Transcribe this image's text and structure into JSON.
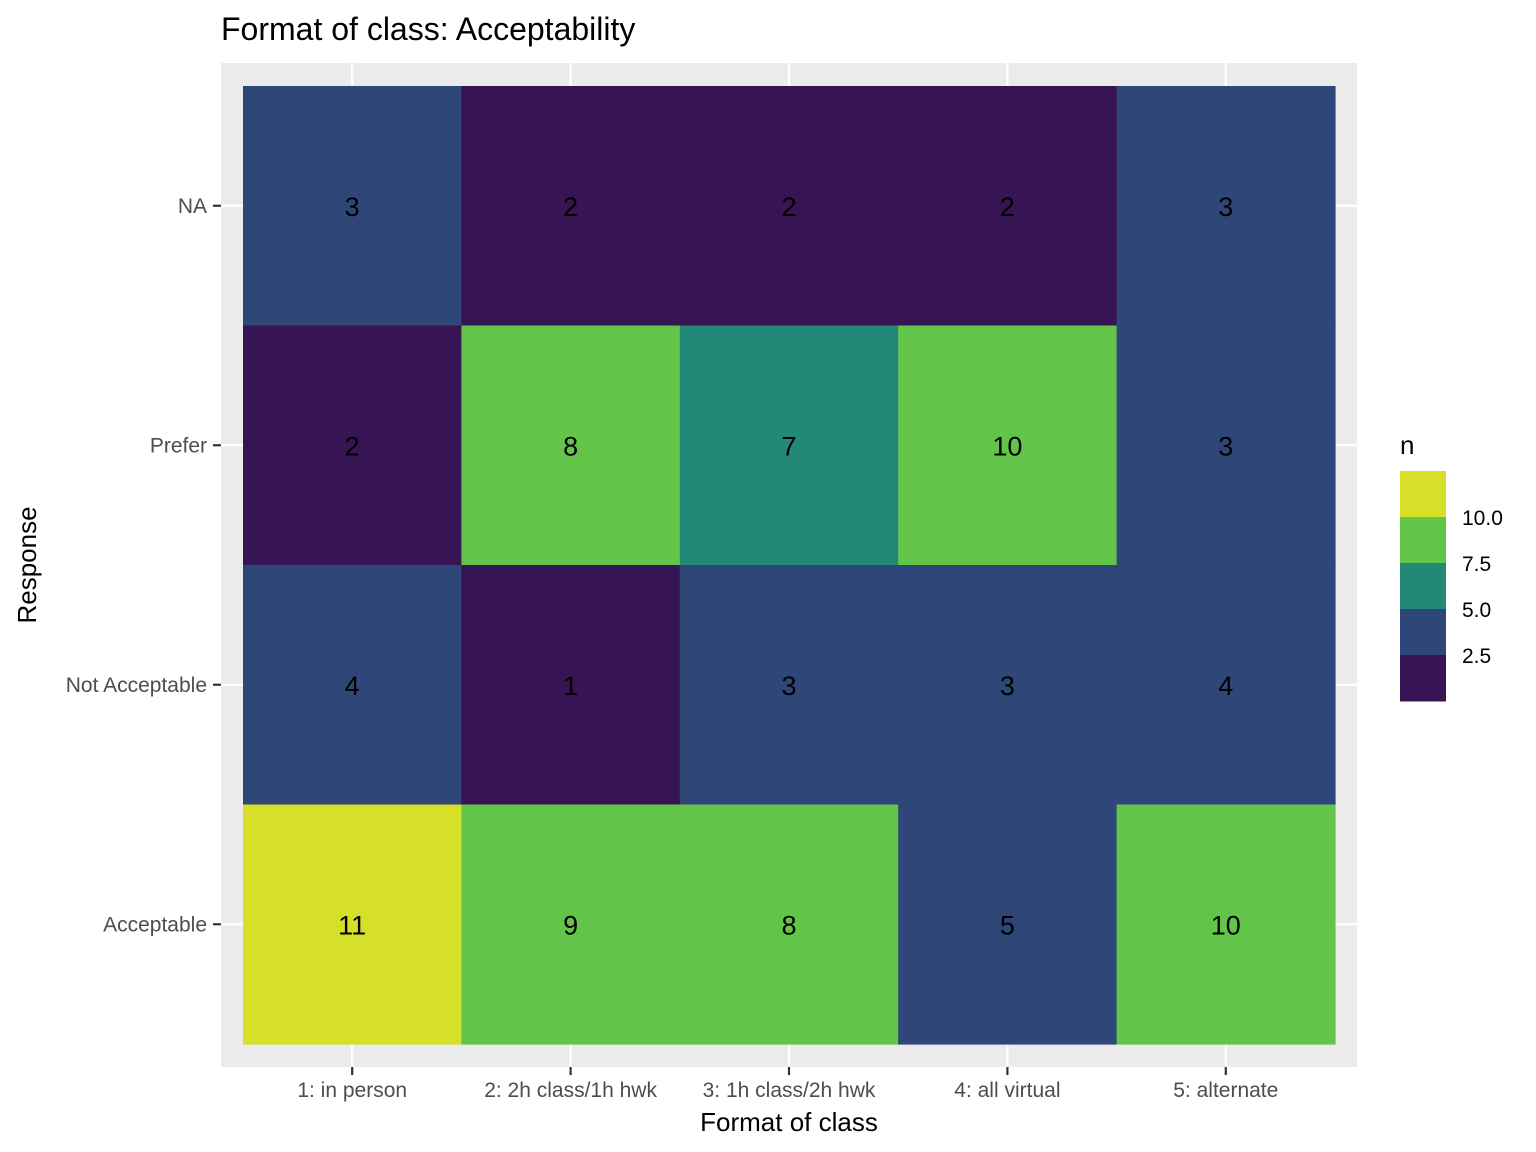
{
  "chart_data": {
    "type": "heatmap",
    "title": "Format of class: Acceptability",
    "xlabel": "Format of class",
    "ylabel": "Response",
    "x_categories": [
      "1: in person",
      "2: 2h class/1h hwk",
      "3: 1h class/2h hwk",
      "4: all virtual",
      "5: alternate"
    ],
    "y_categories": [
      "NA",
      "Prefer",
      "Not Acceptable",
      "Acceptable"
    ],
    "values": [
      [
        3,
        2,
        2,
        2,
        3
      ],
      [
        2,
        8,
        7,
        10,
        3
      ],
      [
        4,
        1,
        3,
        3,
        4
      ],
      [
        11,
        9,
        8,
        5,
        10
      ]
    ],
    "legend": {
      "title": "n",
      "placement": "right",
      "breaks": [
        "10.0",
        "7.5",
        "5.0",
        "2.5"
      ],
      "bins": [
        {
          "min": 0,
          "max": 2.5,
          "color": "#371554"
        },
        {
          "min": 2.5,
          "max": 5.5,
          "color": "#2f4678"
        },
        {
          "min": 5.5,
          "max": 7.5,
          "color": "#238878"
        },
        {
          "min": 7.5,
          "max": 10.5,
          "color": "#62c54a"
        },
        {
          "min": 10.5,
          "max": 100,
          "color": "#d7e028"
        }
      ]
    },
    "grid": true,
    "panel_background": "#ebebeb"
  }
}
